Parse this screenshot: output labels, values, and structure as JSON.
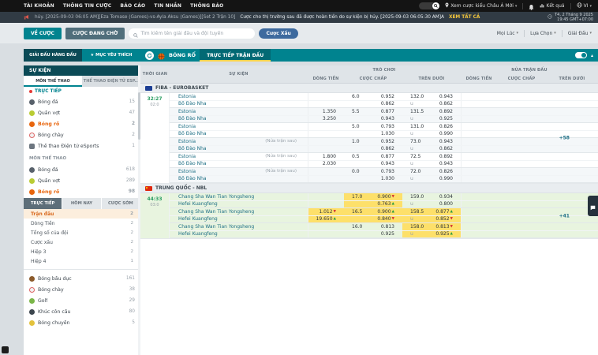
{
  "colors": {
    "accent": "#00838f",
    "dark_accent": "#0b4a56",
    "highlight": "#fde06a",
    "live_row": "#e8f4df",
    "selected_sport": "#e8650d",
    "trend_up": "#2a9c3f",
    "trend_down": "#d32f2f"
  },
  "topbar": {
    "items": [
      "TÀI KHOẢN",
      "THÔNG TIN CƯỢC",
      "BÁO CÁO",
      "TIN NHẮN",
      "THÔNG BÁO"
    ],
    "asia_view": "Xem cược kiểu Châu Á Mới",
    "results": "Kết quả",
    "lang": "VI",
    "icons": [
      "search-icon",
      "location-pin-icon",
      "bell-icon",
      "results-chart-icon",
      "globe-icon"
    ]
  },
  "ticker": {
    "msg1": "hủy. [2025-09-03 06:05 AM][Eza Tomase (Games)-vs-Ayla Aksu (Games)][Set 2 Trận 10]",
    "msg2": "Cược cho thị trường sau đã được hoàn tiền do sự kiện bị hủy. [2025-09-03 06:05:30 AM]A",
    "view_all": "XEM TẤT CẢ",
    "date": "T4, 2 Tháng 9 2025",
    "time": "19:45 GMT+07:00",
    "icons": [
      "megaphone-icon",
      "clock-icon"
    ]
  },
  "toolbar": {
    "my_bets": "VỀ CƯỢC",
    "pending": "CƯỢC ĐANG CHỜ",
    "search_placeholder": "Tìm kiếm tên giải đấu và đội tuyển",
    "parlay": "Cược Xấu",
    "filters": [
      "Mọi Lúc",
      "Lựa Chọn",
      "Giải Đấu"
    ]
  },
  "navrow": {
    "top_leagues": "GIẢI ĐẤU HÀNG ĐẦU",
    "favorites": "MỤC YÊU THÍCH",
    "sport": "BÓNG RỔ",
    "live_tab": "TRỰC TIẾP TRẬN ĐẤU",
    "icons": [
      "refresh-icon",
      "basketball-icon",
      "star-icon",
      "view-toggle",
      "chevron-up-icon"
    ]
  },
  "sidebar": {
    "header": "SỰ KIỆN",
    "tabs": [
      "MÔN THỂ THAO",
      "THỂ THAO ĐIỆN TỬ ESP..."
    ],
    "live_label": "TRỰC TIẾP",
    "live_items": [
      {
        "icon": "soccer",
        "label": "Bóng đá",
        "count": 15
      },
      {
        "icon": "tennis",
        "label": "Quần vợt",
        "count": 47
      },
      {
        "icon": "basketball",
        "label": "Bóng rổ",
        "count": 2,
        "active": true
      },
      {
        "icon": "baseball",
        "label": "Bóng chày",
        "count": 2
      },
      {
        "icon": "esports",
        "label": "Thể thao Điện tử eSports",
        "count": 1
      }
    ],
    "sports_label": "MÔN THỂ THAO",
    "sport_items": [
      {
        "icon": "soccer",
        "label": "Bóng đá",
        "count": 618
      },
      {
        "icon": "tennis",
        "label": "Quần vợt",
        "count": 289
      },
      {
        "icon": "basketball",
        "label": "Bóng rổ",
        "count": 98,
        "active": true
      }
    ],
    "subtabs": [
      "TRỰC TIẾP",
      "HÔM NAY",
      "CƯỢC SỚM"
    ],
    "filters": [
      {
        "label": "Trận đấu",
        "count": 2,
        "active": true
      },
      {
        "label": "Dòng Tiền",
        "count": 2
      },
      {
        "label": "Tổng số của đội",
        "count": 2
      },
      {
        "label": "Cược xấu",
        "count": 2
      },
      {
        "label": "Hiệp 3",
        "count": 2
      },
      {
        "label": "Hiệp 4",
        "count": 1
      }
    ],
    "more_items": [
      {
        "icon": "rugby",
        "label": "Bóng bầu dục",
        "count": 161
      },
      {
        "icon": "baseball",
        "label": "Bóng chày",
        "count": 38
      },
      {
        "icon": "golf",
        "label": "Golf",
        "count": 29
      },
      {
        "icon": "hockey",
        "label": "Khúc côn cầu",
        "count": 80
      },
      {
        "icon": "volleyball",
        "label": "Bóng chuyền",
        "count": 5
      }
    ]
  },
  "oddstable": {
    "col_time": "THỜI GIAN",
    "col_event": "SỰ KIỆN",
    "group1": "TRÒ CHƠI",
    "group2": "NỬA TRẬN ĐẤU",
    "cols": [
      "DÒNG TIỀN",
      "CƯỢC CHẤP",
      "TRÊN DƯỚI"
    ],
    "leagues": [
      {
        "name": "FIBA - EUROBASKET",
        "flag": "eurobasket",
        "matches": [
          {
            "score": "32:27",
            "clock": "02:0",
            "more": "+58",
            "live": false,
            "rows": [
              {
                "team": "Estonia",
                "note": "",
                "ml": null,
                "hc": {
                  "line": "6.0",
                  "odds": "0.952"
                },
                "ou": {
                  "line": "132.0",
                  "odds": "0.943"
                }
              },
              {
                "team": "Bồ Đào Nha",
                "note": "",
                "ml": null,
                "hc": {
                  "line": "",
                  "odds": "0.862"
                },
                "ou": {
                  "line": "u",
                  "odds": "0.862"
                }
              },
              {
                "team": "Estonia",
                "note": "",
                "ml": {
                  "odds": "1.350"
                },
                "hc": {
                  "line": "5.5",
                  "odds": "0.877"
                },
                "ou": {
                  "line": "131.5",
                  "odds": "0.892"
                }
              },
              {
                "team": "Bồ Đào Nha",
                "note": "",
                "ml": {
                  "odds": "3.250"
                },
                "hc": {
                  "line": "",
                  "odds": "0.943"
                },
                "ou": {
                  "line": "u",
                  "odds": "0.925"
                }
              },
              {
                "team": "Estonia",
                "note": "",
                "ml": null,
                "hc": {
                  "line": "5.0",
                  "odds": "0.793"
                },
                "ou": {
                  "line": "131.0",
                  "odds": "0.826"
                }
              },
              {
                "team": "Bồ Đào Nha",
                "note": "",
                "ml": null,
                "hc": {
                  "line": "",
                  "odds": "1.030"
                },
                "ou": {
                  "line": "u",
                  "odds": "0.990"
                }
              },
              {
                "team": "Estonia",
                "note": "(Nửa trận sau)",
                "ml": null,
                "hc": {
                  "line": "1.0",
                  "odds": "0.952"
                },
                "ou": {
                  "line": "73.0",
                  "odds": "0.943"
                }
              },
              {
                "team": "Bồ Đào Nha",
                "note": "",
                "ml": null,
                "hc": {
                  "line": "",
                  "odds": "0.862"
                },
                "ou": {
                  "line": "u",
                  "odds": "0.862"
                }
              },
              {
                "team": "Estonia",
                "note": "(Nửa trận sau)",
                "ml": {
                  "odds": "1.800"
                },
                "hc": {
                  "line": "0.5",
                  "odds": "0.877"
                },
                "ou": {
                  "line": "72.5",
                  "odds": "0.892"
                }
              },
              {
                "team": "Bồ Đào Nha",
                "note": "",
                "ml": {
                  "odds": "2.030"
                },
                "hc": {
                  "line": "",
                  "odds": "0.943"
                },
                "ou": {
                  "line": "u",
                  "odds": "0.943"
                }
              },
              {
                "team": "Estonia",
                "note": "(Nửa trận sau)",
                "ml": null,
                "hc": {
                  "line": "0.0",
                  "odds": "0.793"
                },
                "ou": {
                  "line": "72.0",
                  "odds": "0.826"
                }
              },
              {
                "team": "Bồ Đào Nha",
                "note": "",
                "ml": null,
                "hc": {
                  "line": "",
                  "odds": "1.030"
                },
                "ou": {
                  "line": "u",
                  "odds": "0.990"
                }
              }
            ]
          }
        ]
      },
      {
        "name": "TRUNG QUỐC - NBL",
        "flag": "china",
        "matches": [
          {
            "score": "44:33",
            "clock": "03:0",
            "more": "+41",
            "live": true,
            "rows": [
              {
                "team": "Chang Sha Wan Tian Yongsheng",
                "note": "",
                "ml": null,
                "hc": {
                  "line": "17.0",
                  "odds": "0.900",
                  "trend": "down",
                  "hl": true
                },
                "ou": {
                  "line": "159.0",
                  "odds": "0.934"
                }
              },
              {
                "team": "Hefei Kuangfeng",
                "note": "",
                "ml": null,
                "hc": {
                  "line": "",
                  "odds": "0.763",
                  "trend": "up",
                  "hl": true
                },
                "ou": {
                  "line": "u",
                  "odds": "0.800"
                }
              },
              {
                "team": "Chang Sha Wan Tian Yongsheng",
                "note": "",
                "ml": {
                  "odds": "1.012",
                  "trend": "down",
                  "hl": true
                },
                "hc": {
                  "line": "16.5",
                  "odds": "0.900",
                  "trend": "up",
                  "hl": true
                },
                "ou": {
                  "line": "158.5",
                  "odds": "0.877",
                  "trend": "up",
                  "hl": true
                }
              },
              {
                "team": "Hefei Kuangfeng",
                "note": "",
                "ml": {
                  "odds": "19.650",
                  "trend": "up",
                  "hl": true
                },
                "hc": {
                  "line": "",
                  "odds": "0.840",
                  "trend": "down",
                  "hl": true
                },
                "ou": {
                  "line": "u",
                  "odds": "0.852",
                  "trend": "down",
                  "hl": true
                }
              },
              {
                "team": "Chang Sha Wan Tian Yongsheng",
                "note": "",
                "ml": null,
                "hc": {
                  "line": "16.0",
                  "odds": "0.813"
                },
                "ou": {
                  "line": "158.0",
                  "odds": "0.813",
                  "trend": "down",
                  "hl": true
                }
              },
              {
                "team": "Hefei Kuangfeng",
                "note": "",
                "ml": null,
                "hc": {
                  "line": "",
                  "odds": "0.925"
                },
                "ou": {
                  "line": "u",
                  "odds": "0.925",
                  "trend": "up",
                  "hl": true
                }
              }
            ]
          }
        ]
      }
    ]
  }
}
